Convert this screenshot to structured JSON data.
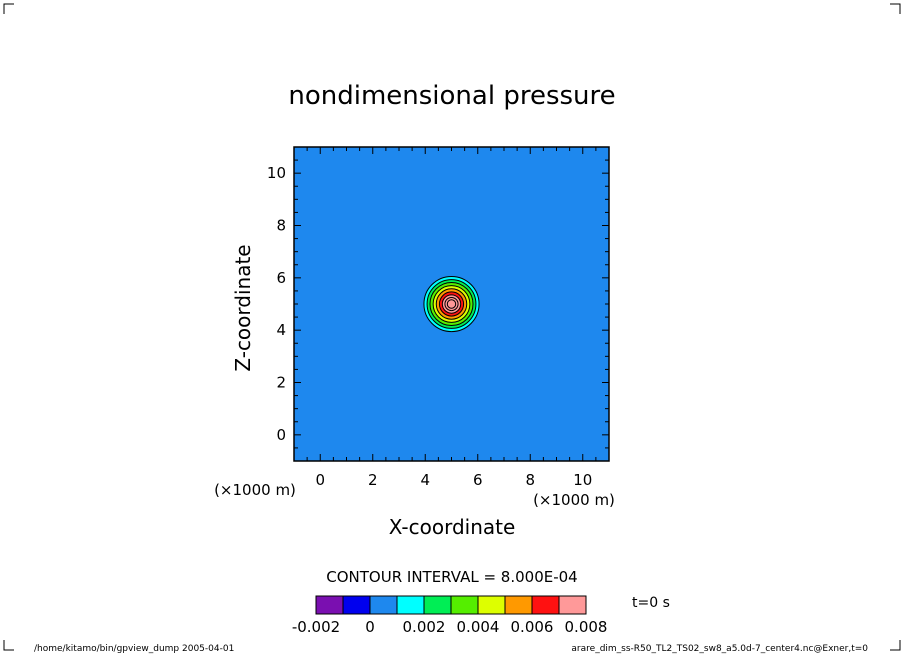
{
  "chart_data": {
    "type": "contour",
    "title": "nondimensional pressure",
    "xlabel": "X-coordinate",
    "ylabel": "Z-coordinate",
    "x_unit": "(×1000 m)",
    "y_unit": "(×1000 m)",
    "xlim": [
      -1,
      11
    ],
    "ylim": [
      -1,
      11
    ],
    "xticks": [
      0,
      2,
      4,
      6,
      8,
      10
    ],
    "yticks": [
      0,
      2,
      4,
      6,
      8,
      10
    ],
    "contour_interval_text": "CONTOUR INTERVAL = 8.000E-04",
    "time_text": "t=0 s",
    "feature": {
      "center": [
        5,
        5
      ],
      "levels": [
        0.0008,
        0.0016,
        0.0024,
        0.0032,
        0.004,
        0.0048,
        0.0056,
        0.0064,
        0.0072
      ],
      "radii": [
        1.05,
        0.93,
        0.82,
        0.7,
        0.58,
        0.46,
        0.35,
        0.25,
        0.16
      ]
    },
    "colorbar": {
      "colors": [
        "#7a0fb0",
        "#0000ee",
        "#1e88ee",
        "#00ffff",
        "#00ee55",
        "#55ee00",
        "#ddff00",
        "#ff9900",
        "#ff1111",
        "#ff9999"
      ],
      "labels": [
        "-0.002",
        "0",
        "0.002",
        "0.004",
        "0.006",
        "0.008"
      ]
    },
    "background_color": "#1e88ee",
    "grid": false
  },
  "footer": {
    "left": "/home/kitamo/bin/gpview_dump  2005-04-01",
    "right": "arare_dim_ss-R50_TL2_TS02_sw8_a5.0d-7_center4.nc@Exner,t=0"
  }
}
